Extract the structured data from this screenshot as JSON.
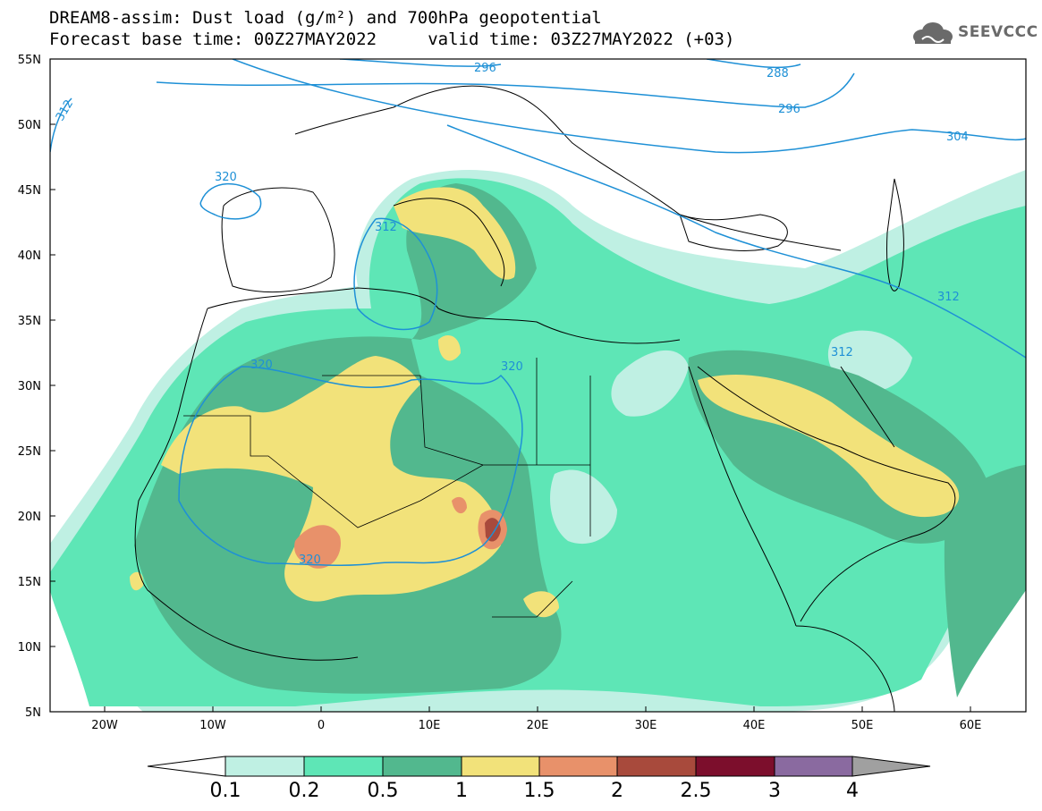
{
  "title_line1": "DREAM8-assim: Dust load (g/m²) and 700hPa geopotential",
  "title_line2": "Forecast base time: 00Z27MAY2022     valid time: 03Z27MAY2022 (+03)",
  "logo": {
    "text": "SEEVCCC",
    "icon": "cloud-icon"
  },
  "lat_labels": [
    "55N",
    "50N",
    "45N",
    "40N",
    "35N",
    "30N",
    "25N",
    "20N",
    "15N",
    "10N",
    "5N"
  ],
  "lon_labels": [
    "20W",
    "10W",
    "0",
    "10E",
    "20E",
    "30E",
    "40E",
    "50E",
    "60E"
  ],
  "contour_labels": [
    "296",
    "288",
    "296",
    "304",
    "312",
    "320",
    "312",
    "320",
    "312",
    "320",
    "312",
    "320"
  ],
  "colorbar": {
    "labels": [
      "0.1",
      "0.2",
      "0.5",
      "1",
      "1.5",
      "2",
      "2.5",
      "3",
      "4"
    ],
    "colors": [
      "#ffffff",
      "#bff0e3",
      "#5ee6b6",
      "#52b88e",
      "#f2e27a",
      "#e8916a",
      "#a84a3c",
      "#7c0e2c",
      "#8a6aa0",
      "#a0a0a0"
    ]
  },
  "colors": {
    "very_low": "#bff0e3",
    "low": "#5ee6b6",
    "mid": "#52b88e",
    "high": "#f2e27a",
    "higher": "#e8916a",
    "peak": "#a84a3c",
    "contour": "#1e90d6"
  }
}
